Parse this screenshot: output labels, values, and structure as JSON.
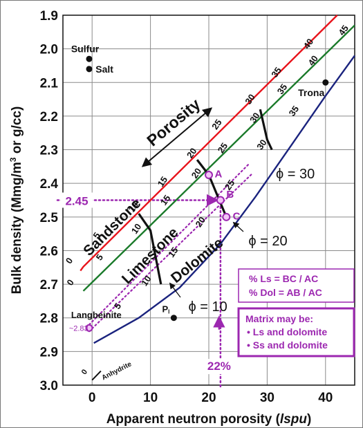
{
  "chart_data": {
    "type": "line",
    "xlabel_main": "Apparent neutron porosity (",
    "xlabel_unit": "lspu",
    "xlabel_end": ")",
    "ylabel_main": "Bulk density (Mmg/m",
    "ylabel_sup": "3",
    "ylabel_end": " or g/cc)",
    "xlim": [
      -5,
      45
    ],
    "ylim": [
      3.0,
      1.9
    ],
    "x_ticks": [
      0,
      10,
      20,
      30,
      40
    ],
    "y_ticks": [
      1.9,
      2.0,
      2.1,
      2.2,
      2.3,
      2.4,
      2.5,
      2.6,
      2.7,
      2.8,
      2.9,
      3.0
    ],
    "y_tick_labels": [
      "1.9",
      "2.0",
      "2.1",
      "2.2",
      "2.3",
      "2.4",
      "2.5",
      "2.6",
      "2.7",
      "2.8",
      "2.9",
      "3.0"
    ],
    "grid": true,
    "series": [
      {
        "name": "Sandstone",
        "color": "#e8131b",
        "points": [
          [
            -2,
            2.66
          ],
          [
            -1.5,
            2.648
          ],
          [
            42,
            1.9
          ]
        ],
        "porosity_labels": [
          {
            "text": "0",
            "x": -3.5,
            "y": 2.635
          },
          {
            "text": "5",
            "x": 1.2,
            "y": 2.56
          },
          {
            "text": "10",
            "x": 7.5,
            "y": 2.475
          },
          {
            "text": "15",
            "x": 12.5,
            "y": 2.4
          },
          {
            "text": "20",
            "x": 17.5,
            "y": 2.315
          },
          {
            "text": "25",
            "x": 21.8,
            "y": 2.23
          },
          {
            "text": "30",
            "x": 27.5,
            "y": 2.155
          },
          {
            "text": "35",
            "x": 32,
            "y": 2.075
          },
          {
            "text": "40",
            "x": 37.5,
            "y": 1.99
          }
        ]
      },
      {
        "name": "Limestone",
        "color": "#1a7a2a",
        "points": [
          [
            -1.5,
            2.72
          ],
          [
            45,
            1.93
          ]
        ],
        "porosity_labels": [
          {
            "text": "0",
            "x": -3.3,
            "y": 2.7
          },
          {
            "text": "5",
            "x": 1.7,
            "y": 2.625
          },
          {
            "text": "10",
            "x": 8,
            "y": 2.54
          },
          {
            "text": "15",
            "x": 13,
            "y": 2.455
          },
          {
            "text": "20",
            "x": 18.3,
            "y": 2.375
          },
          {
            "text": "25",
            "x": 22.8,
            "y": 2.3
          },
          {
            "text": "30",
            "x": 28.3,
            "y": 2.21
          },
          {
            "text": "35",
            "x": 33,
            "y": 2.125
          },
          {
            "text": "40",
            "x": 38.3,
            "y": 2.04
          },
          {
            "text": "45",
            "x": 43.5,
            "y": 1.95
          }
        ]
      },
      {
        "name": "Dolomite",
        "color": "#1a237e",
        "points": [
          [
            0.3,
            2.875
          ],
          [
            8,
            2.8
          ],
          [
            15,
            2.71
          ],
          [
            22,
            2.58
          ],
          [
            28,
            2.44
          ],
          [
            34,
            2.29
          ],
          [
            40,
            2.14
          ],
          [
            45,
            2.02
          ]
        ],
        "porosity_labels": [
          {
            "text": "5",
            "x": 4.8,
            "y": 2.77
          },
          {
            "text": "10",
            "x": 9.7,
            "y": 2.695
          },
          {
            "text": "15",
            "x": 14.3,
            "y": 2.61
          },
          {
            "text": "20",
            "x": 19,
            "y": 2.52
          },
          {
            "text": "25",
            "x": 24,
            "y": 2.41
          },
          {
            "text": "30",
            "x": 29.5,
            "y": 2.29
          },
          {
            "text": "35",
            "x": 35,
            "y": 2.19
          }
        ]
      }
    ],
    "isoporosity_lines": [
      {
        "points": [
          [
            8,
            2.49
          ],
          [
            10,
            2.54
          ],
          [
            11.8,
            2.7
          ]
        ]
      },
      {
        "points": [
          [
            18,
            2.33
          ],
          [
            20,
            2.375
          ],
          [
            23,
            2.5
          ]
        ]
      },
      {
        "points": [
          [
            28.8,
            2.18
          ],
          [
            30,
            2.27
          ],
          [
            30.8,
            2.3
          ]
        ]
      }
    ],
    "anhydrite_line": {
      "points": [
        [
          0,
          2.985
        ],
        [
          1.5,
          2.958
        ]
      ]
    },
    "bracket_lines": {
      "color": "#9c27b0",
      "upper": [
        [
          -0.5,
          2.82
        ],
        [
          27,
          2.34
        ]
      ],
      "lower": [
        [
          -0.5,
          2.84
        ],
        [
          27.5,
          2.37
        ]
      ]
    },
    "minerals": [
      {
        "name": "Sulfur",
        "x": -0.5,
        "y": 2.03,
        "label_x": -3.6,
        "label_y": 2.0
      },
      {
        "name": "Salt",
        "x": -0.5,
        "y": 2.06,
        "label_x": 0.6,
        "label_y": 2.06
      },
      {
        "name": "Trona",
        "x": 40,
        "y": 2.1,
        "label_x": 35.3,
        "label_y": 2.13
      },
      {
        "name": "Langbeinite",
        "x": -1,
        "y": 2.81,
        "label_x": -3.6,
        "label_y": 2.79
      }
    ],
    "p_point": {
      "text": "P",
      "subscript": "I",
      "x": 14,
      "y": 2.8,
      "label_x": 12,
      "label_y": 2.775
    },
    "langbeinite_value": {
      "text": "~2.83",
      "x": -0.5,
      "y": 2.83
    },
    "points_abc": [
      {
        "label": "A",
        "x": 20,
        "y": 2.375,
        "label_dx": 1,
        "label_dy": -0.005
      },
      {
        "label": "B",
        "x": 22,
        "y": 2.45,
        "label_dx": 1,
        "label_dy": -0.02
      },
      {
        "label": "C",
        "x": 23,
        "y": 2.5,
        "label_dx": 1.1,
        "label_dy": -0.005
      }
    ],
    "readings": {
      "rho_label": "2.45",
      "rho_value": 2.45,
      "phi_label": "22%",
      "phi_value": 22
    },
    "phi_labels": [
      {
        "text": "ϕ = 30",
        "x": 31.5,
        "y": 2.385
      },
      {
        "text": "ϕ = 20",
        "x": 26.8,
        "y": 2.585
      },
      {
        "text": "ϕ = 10",
        "x": 16.5,
        "y": 2.78
      }
    ],
    "lithology_labels": [
      {
        "text": "Sandstone",
        "x": 4,
        "y": 2.54,
        "angle": -45
      },
      {
        "text": "Limestone",
        "x": 10.5,
        "y": 2.625,
        "angle": -45
      },
      {
        "text": "Dolomite",
        "x": 18.5,
        "y": 2.64,
        "angle": -39
      }
    ],
    "porosity_arrow": {
      "text": "Porosity"
    },
    "formula_box": {
      "line1": "% Ls = BC / AC",
      "line2": "% Dol = AB / AC"
    },
    "matrix_box": {
      "title": "Matrix may be:",
      "items": [
        "• Ls and dolomite",
        "• Ss and dolomite"
      ]
    },
    "colors": {
      "purple": "#9c27b0",
      "grid": "#8a8a8a",
      "axis_text": "#111111"
    }
  }
}
